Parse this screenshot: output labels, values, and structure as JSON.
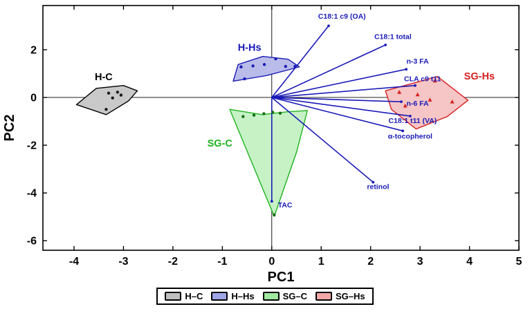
{
  "chart_data": {
    "type": "scatter",
    "title": "",
    "xlabel": "PC1",
    "ylabel": "PC2",
    "xlim": [
      -4.63,
      5.0
    ],
    "ylim": [
      -6.4,
      3.85
    ],
    "xticks": [
      -4,
      -3,
      -2,
      -1,
      0,
      1,
      2,
      3,
      4,
      5
    ],
    "yticks": [
      -6,
      -4,
      -2,
      0,
      2
    ],
    "grid": false,
    "legend_position": "bottom",
    "axis_color": "#000000",
    "vector_color": "#1a1ab8",
    "groups": [
      {
        "id": "h-c",
        "plot_label": "H-C",
        "legend_label": "H–C",
        "stroke": "#000000",
        "fill": "#c9c9c9",
        "legend_fill": "#bfbfbf",
        "label_color": "#000000",
        "label_pos": [
          -3.4,
          0.72
        ],
        "marker": "circle",
        "marker_color": "#1a1a1a",
        "hull": [
          [
            -3.95,
            -0.3
          ],
          [
            -3.55,
            0.38
          ],
          [
            -3.0,
            0.5
          ],
          [
            -2.72,
            0.28
          ],
          [
            -2.9,
            -0.15
          ],
          [
            -3.35,
            -0.72
          ]
        ],
        "points": [
          [
            -3.3,
            0.18
          ],
          [
            -3.12,
            0.22
          ],
          [
            -3.22,
            -0.02
          ],
          [
            -3.05,
            0.1
          ],
          [
            -3.35,
            -0.5
          ]
        ]
      },
      {
        "id": "h-hs",
        "plot_label": "H-Hs",
        "legend_label": "H–Hs",
        "stroke": "#1a1ab8",
        "fill": "#b9bce8",
        "legend_fill": "#9fa6e6",
        "label_color": "#1a1ab8",
        "label_pos": [
          -0.45,
          1.95
        ],
        "marker": "circle",
        "marker_color": "#1a1ab8",
        "hull": [
          [
            -0.78,
            0.68
          ],
          [
            -0.68,
            1.38
          ],
          [
            -0.18,
            1.72
          ],
          [
            0.33,
            1.6
          ],
          [
            0.56,
            1.28
          ],
          [
            -0.1,
            0.92
          ]
        ],
        "points": [
          [
            -0.62,
            1.28
          ],
          [
            -0.38,
            1.32
          ],
          [
            -0.15,
            1.38
          ],
          [
            0.08,
            1.62
          ],
          [
            0.28,
            1.3
          ],
          [
            0.47,
            1.3
          ],
          [
            -0.55,
            0.78
          ]
        ]
      },
      {
        "id": "sg-c",
        "plot_label": "SG-C",
        "legend_label": "SG–C",
        "stroke": "#1db31d",
        "fill": "#c6f2c6",
        "legend_fill": "#9fe89f",
        "label_color": "#1db31d",
        "label_pos": [
          -1.05,
          -2.05
        ],
        "marker": "circle",
        "marker_color": "#156e15",
        "hull": [
          [
            -0.85,
            -0.5
          ],
          [
            -0.2,
            -0.72
          ],
          [
            0.32,
            -0.6
          ],
          [
            0.72,
            -0.55
          ],
          [
            0.5,
            -2.3
          ],
          [
            0.05,
            -4.98
          ]
        ],
        "points": [
          [
            -0.58,
            -0.8
          ],
          [
            -0.36,
            -0.74
          ],
          [
            -0.16,
            -0.68
          ],
          [
            0.02,
            -0.62
          ],
          [
            0.17,
            -0.66
          ],
          [
            0.05,
            -4.92
          ]
        ]
      },
      {
        "id": "sg-hs",
        "plot_label": "SG-Hs",
        "legend_label": "SG–Hs",
        "stroke": "#d42020",
        "fill": "#f6c5c5",
        "legend_fill": "#f2a8a8",
        "label_color": "#d42020",
        "label_pos": [
          4.2,
          0.75
        ],
        "marker": "triangle",
        "marker_color": "#d42020",
        "hull": [
          [
            2.3,
            0.28
          ],
          [
            2.9,
            0.62
          ],
          [
            3.35,
            0.88
          ],
          [
            3.97,
            -0.12
          ],
          [
            3.55,
            -0.8
          ],
          [
            2.92,
            -1.32
          ],
          [
            2.42,
            -0.5
          ]
        ],
        "points": [
          [
            2.58,
            0.22
          ],
          [
            2.95,
            0.12
          ],
          [
            3.2,
            -0.1
          ],
          [
            3.65,
            -0.18
          ],
          [
            2.7,
            -0.35
          ],
          [
            3.3,
            0.7
          ]
        ]
      }
    ],
    "vectors": [
      {
        "label": "C18:1 c9 (OA)",
        "end": [
          1.15,
          3.0
        ],
        "label_pos": [
          1.42,
          3.3
        ]
      },
      {
        "label": "C18:1 total",
        "end": [
          2.3,
          2.2
        ],
        "label_pos": [
          2.45,
          2.45
        ]
      },
      {
        "label": "n-3 FA",
        "end": [
          2.72,
          1.18
        ],
        "label_pos": [
          2.95,
          1.42
        ]
      },
      {
        "label": "CLA c9 t11",
        "end": [
          2.9,
          0.5
        ],
        "label_pos": [
          3.05,
          0.68
        ]
      },
      {
        "label": "n-6 FA",
        "end": [
          2.62,
          -0.18
        ],
        "label_pos": [
          2.95,
          -0.35
        ]
      },
      {
        "label": "C18:1 t11 (VA)",
        "end": [
          2.8,
          -0.78
        ],
        "label_pos": [
          2.85,
          -1.07
        ]
      },
      {
        "label": "α-tocopherol",
        "end": [
          2.65,
          -1.4
        ],
        "label_pos": [
          2.8,
          -1.72
        ]
      },
      {
        "label": "retinol",
        "end": [
          2.05,
          -3.55
        ],
        "label_pos": [
          2.15,
          -3.84
        ]
      },
      {
        "label": "TAC",
        "end": [
          0.0,
          -4.35
        ],
        "label_pos": [
          0.27,
          -4.6
        ]
      }
    ]
  }
}
